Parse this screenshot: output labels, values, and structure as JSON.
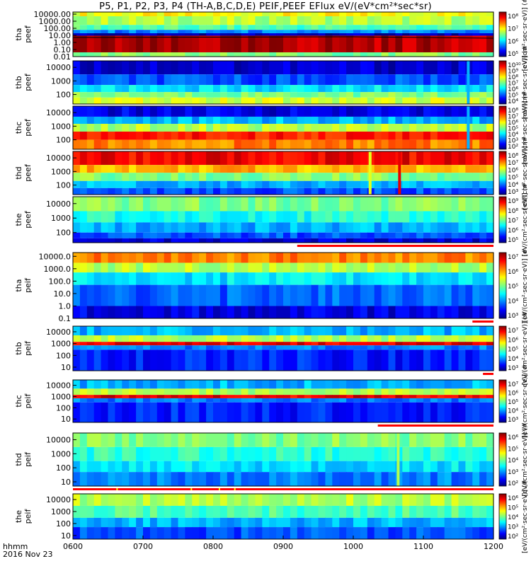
{
  "title": "P5, P1, P2, P3, P4 (TH-A,B,C,D,E) PEIF,PEEF EFlux eV/(eV*cm²*sec*sr)",
  "time_axis": {
    "ticks": [
      "0600",
      "0700",
      "0800",
      "0900",
      "1000",
      "1100",
      "1200"
    ],
    "corner_label": "hhmm",
    "date_label": "2016 Nov 23"
  },
  "colors": {
    "spectrogram_scale": [
      "#000080",
      "#0000ff",
      "#0080ff",
      "#00ffff",
      "#80ff80",
      "#ffff00",
      "#ff8000",
      "#ff0000",
      "#800000"
    ],
    "flag_red": "#ff0000",
    "flag_yellow": "#ffff00",
    "frame": "#000000"
  },
  "chart_data": [
    {
      "type": "heatmap",
      "spacecraft": "tha",
      "species": "peef",
      "ylabel": [
        "tha",
        "peef"
      ],
      "yticks": [
        "10000.00",
        "1000.00",
        "100.00",
        "10.00",
        "1.00",
        "0.10",
        "0.01"
      ],
      "ylim": [
        0.01,
        20000
      ],
      "yscale": "log",
      "zticks": [
        "10⁸",
        "10⁷",
        "10⁶",
        "10⁵"
      ],
      "colorbar_label": "[eV/(cm²·sec·sr·eV)] (#",
      "has_line": true,
      "bands": [
        {
          "y_low": 5000,
          "y_high": 20000,
          "level": 0.62
        },
        {
          "y_low": 300,
          "y_high": 5000,
          "level": 0.55
        },
        {
          "y_low": 60,
          "y_high": 300,
          "level": 0.45
        },
        {
          "y_low": 20,
          "y_high": 60,
          "level": 0.25
        },
        {
          "y_low": 9,
          "y_high": 20,
          "level": 0.05
        },
        {
          "y_low": 0.04,
          "y_high": 9,
          "level": 0.95
        },
        {
          "y_low": 0.01,
          "y_high": 0.04,
          "level": 0.5
        }
      ]
    },
    {
      "type": "heatmap",
      "spacecraft": "thb",
      "species": "peef",
      "ylabel": [
        "thb",
        "peef"
      ],
      "yticks": [
        "10000",
        "1000",
        "100"
      ],
      "ylim": [
        20,
        30000
      ],
      "yscale": "log",
      "zticks": [
        "10¹⁰",
        "10⁹",
        "10⁸",
        "10⁷",
        "10⁶",
        "10⁵",
        "10⁴"
      ],
      "colorbar_label": "[eV/(cm²·sec·sr·eV)] (#",
      "bands": [
        {
          "y_low": 3000,
          "y_high": 30000,
          "level": 0.08
        },
        {
          "y_low": 500,
          "y_high": 3000,
          "level": 0.2
        },
        {
          "y_low": 150,
          "y_high": 500,
          "level": 0.35
        },
        {
          "y_low": 60,
          "y_high": 150,
          "level": 0.5
        },
        {
          "y_low": 20,
          "y_high": 60,
          "level": 0.58
        }
      ],
      "spikes": [
        {
          "t": 1164,
          "level": 0.3
        }
      ]
    },
    {
      "type": "heatmap",
      "spacecraft": "thc",
      "species": "peef",
      "ylabel": [
        "thc",
        "peef"
      ],
      "yticks": [
        "10000",
        "1000",
        "100"
      ],
      "ylim": [
        20,
        30000
      ],
      "yscale": "log",
      "zticks": [
        "10⁸",
        "10⁷",
        "10⁶",
        "10⁵",
        "10⁴",
        "10³",
        "10²"
      ],
      "colorbar_label": "[eV/(cm²·sec·sr·eV)] (#",
      "bands": [
        {
          "y_low": 5000,
          "y_high": 30000,
          "level": 0.1
        },
        {
          "y_low": 1500,
          "y_high": 5000,
          "level": 0.3
        },
        {
          "y_low": 400,
          "y_high": 1500,
          "level": 0.55
        },
        {
          "y_low": 100,
          "y_high": 400,
          "level": 0.85
        },
        {
          "y_low": 20,
          "y_high": 100,
          "level": 0.75
        }
      ],
      "spikes": [
        {
          "t": 1164,
          "level": 0.3
        }
      ]
    },
    {
      "type": "heatmap",
      "spacecraft": "thd",
      "species": "peef",
      "ylabel": [
        "thd",
        "peef"
      ],
      "yticks": [
        "10000",
        "1000",
        "100"
      ],
      "ylim": [
        20,
        30000
      ],
      "yscale": "log",
      "zticks": [
        "10⁸",
        "10⁷",
        "10⁶",
        "10⁵",
        "10⁴",
        "10³"
      ],
      "colorbar_label": "[eV/(cm²·sec·sr·eV)] (#",
      "bands": [
        {
          "y_low": 3000,
          "y_high": 30000,
          "level": 0.88
        },
        {
          "y_low": 800,
          "y_high": 3000,
          "level": 0.7
        },
        {
          "y_low": 200,
          "y_high": 800,
          "level": 0.5
        },
        {
          "y_low": 60,
          "y_high": 200,
          "level": 0.3
        },
        {
          "y_low": 20,
          "y_high": 60,
          "level": 0.2
        }
      ],
      "spikes": [
        {
          "t": 1024,
          "level": 0.6
        },
        {
          "t": 1066,
          "level": 0.9
        }
      ]
    },
    {
      "type": "heatmap",
      "spacecraft": "the",
      "species": "peef",
      "ylabel": [
        "the",
        "peef"
      ],
      "yticks": [
        "10000",
        "1000",
        "100"
      ],
      "ylim": [
        20,
        30000
      ],
      "yscale": "log",
      "zticks": [
        "10⁹",
        "10⁸",
        "10⁷",
        "10⁶",
        "10⁵"
      ],
      "colorbar_label": "[eV/(cm²·sec·sr·eV)] (#",
      "bands": [
        {
          "y_low": 3000,
          "y_high": 30000,
          "level": 0.5
        },
        {
          "y_low": 500,
          "y_high": 3000,
          "level": 0.4
        },
        {
          "y_low": 100,
          "y_high": 500,
          "level": 0.3
        },
        {
          "y_low": 40,
          "y_high": 100,
          "level": 0.2
        },
        {
          "y_low": 20,
          "y_high": 40,
          "level": 0.08
        }
      ],
      "flag_segments": [
        {
          "t0": 920,
          "t1": 1200,
          "color": "#ff0000"
        }
      ]
    },
    {
      "type": "heatmap",
      "spacecraft": "tha",
      "species": "peif",
      "ylabel": [
        "tha",
        "peif"
      ],
      "yticks": [
        "10000.0",
        "1000.0",
        "100.0",
        "10.0",
        "1.0",
        "0.1"
      ],
      "ylim": [
        0.1,
        20000
      ],
      "yscale": "log",
      "zticks": [
        "10⁷",
        "10⁶",
        "10⁵",
        "10⁴",
        "10³"
      ],
      "colorbar_label": "[eV/(cm²·sec·sr·eV)] (#",
      "bands": [
        {
          "y_low": 3000,
          "y_high": 20000,
          "level": 0.75
        },
        {
          "y_low": 500,
          "y_high": 3000,
          "level": 0.55
        },
        {
          "y_low": 50,
          "y_high": 500,
          "level": 0.35
        },
        {
          "y_low": 1,
          "y_high": 50,
          "level": 0.22
        },
        {
          "y_low": 0.1,
          "y_high": 1,
          "level": 0.1
        }
      ],
      "flag_segments": [
        {
          "t0": 1170,
          "t1": 1200,
          "color": "#ff0000"
        }
      ]
    },
    {
      "type": "heatmap",
      "spacecraft": "thb",
      "species": "peif",
      "ylabel": [
        "thb",
        "peif"
      ],
      "yticks": [
        "10000",
        "1000",
        "100",
        "10"
      ],
      "ylim": [
        5,
        30000
      ],
      "yscale": "log",
      "zticks": [
        "10⁷",
        "10⁶",
        "10⁵",
        "10⁴",
        "10³"
      ],
      "colorbar_label": "[eV/(cm²·sec·sr·eV)] (#",
      "bands": [
        {
          "y_low": 5000,
          "y_high": 30000,
          "level": 0.3
        },
        {
          "y_low": 1400,
          "y_high": 5000,
          "level": 0.55
        },
        {
          "y_low": 700,
          "y_high": 1400,
          "level": 0.9
        },
        {
          "y_low": 300,
          "y_high": 700,
          "level": 0.25
        },
        {
          "y_low": 5,
          "y_high": 300,
          "level": 0.15
        }
      ],
      "flag_segments": [
        {
          "t0": 1185,
          "t1": 1200,
          "color": "#ff0000"
        }
      ]
    },
    {
      "type": "heatmap",
      "spacecraft": "thc",
      "species": "peif",
      "ylabel": [
        "thc",
        "peif"
      ],
      "yticks": [
        "10000",
        "1000",
        "100",
        "10"
      ],
      "ylim": [
        5,
        30000
      ],
      "yscale": "log",
      "zticks": [
        "10⁷",
        "10⁶",
        "10⁵",
        "10⁴",
        "10³"
      ],
      "colorbar_label": "[eV/(cm²·sec·sr·eV)] (#",
      "bands": [
        {
          "y_low": 5000,
          "y_high": 30000,
          "level": 0.3
        },
        {
          "y_low": 1400,
          "y_high": 5000,
          "level": 0.55
        },
        {
          "y_low": 700,
          "y_high": 1400,
          "level": 0.9
        },
        {
          "y_low": 300,
          "y_high": 700,
          "level": 0.25
        },
        {
          "y_low": 5,
          "y_high": 300,
          "level": 0.15
        }
      ],
      "flag_segments": [
        {
          "t0": 1035,
          "t1": 1200,
          "color": "#ff0000"
        }
      ]
    },
    {
      "type": "heatmap",
      "spacecraft": "thd",
      "species": "peif",
      "ylabel": [
        "thd",
        "peif"
      ],
      "yticks": [
        "10000",
        "1000",
        "100",
        "10"
      ],
      "ylim": [
        5,
        30000
      ],
      "yscale": "log",
      "zticks": [
        "10⁶",
        "10⁵",
        "10⁴",
        "10³",
        "10²"
      ],
      "colorbar_label": "[eV/(cm²·sec·sr·eV)] (#",
      "bands": [
        {
          "y_low": 3000,
          "y_high": 30000,
          "level": 0.5
        },
        {
          "y_low": 300,
          "y_high": 3000,
          "level": 0.42
        },
        {
          "y_low": 50,
          "y_high": 300,
          "level": 0.35
        },
        {
          "y_low": 5,
          "y_high": 50,
          "level": 0.25
        }
      ],
      "spikes": [
        {
          "t": 1064,
          "level": 0.55
        }
      ],
      "flag_segments": [
        {
          "t0": 600,
          "t1": 1200,
          "color": "#ff0000"
        },
        {
          "t0": 662,
          "t1": 664,
          "color": "#ffff00"
        },
        {
          "t0": 768,
          "t1": 770,
          "color": "#ffff00"
        },
        {
          "t0": 808,
          "t1": 810,
          "color": "#ffff00"
        },
        {
          "t0": 830,
          "t1": 832,
          "color": "#ffff00"
        }
      ]
    },
    {
      "type": "heatmap",
      "spacecraft": "the",
      "species": "peif",
      "ylabel": [
        "the",
        "peif"
      ],
      "yticks": [
        "10000",
        "1000",
        "100",
        "10"
      ],
      "ylim": [
        5,
        30000
      ],
      "yscale": "log",
      "zticks": [
        "10⁶",
        "10⁵",
        "10⁴",
        "10³",
        "10²"
      ],
      "colorbar_label": "[eV/(cm²·sec·sr·eV)] (#",
      "bands": [
        {
          "y_low": 3000,
          "y_high": 30000,
          "level": 0.55
        },
        {
          "y_low": 300,
          "y_high": 3000,
          "level": 0.45
        },
        {
          "y_low": 50,
          "y_high": 300,
          "level": 0.3
        },
        {
          "y_low": 5,
          "y_high": 50,
          "level": 0.2
        }
      ]
    }
  ]
}
